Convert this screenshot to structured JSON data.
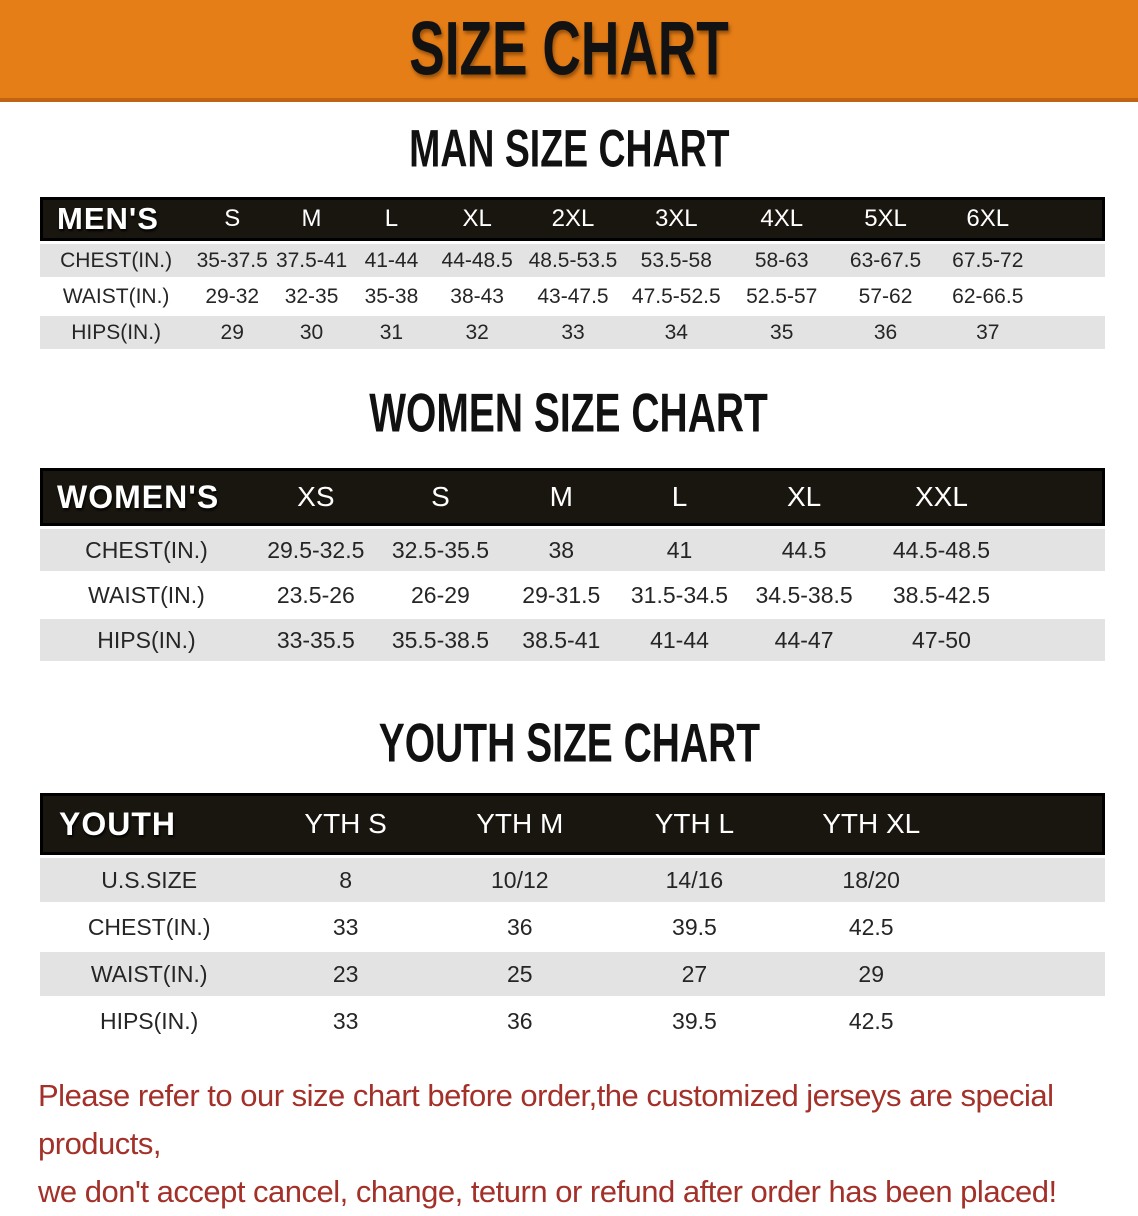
{
  "banner": {
    "title": "SIZE CHART"
  },
  "colors": {
    "banner_bg": "#E67E17",
    "banner_border": "#C06313",
    "header_bg": "#19150F",
    "header_border": "#000000",
    "row_gray": "#E3E3E3",
    "footer_red": "#A33029",
    "cell_text": "#252525",
    "heading_black": "#111111"
  },
  "sections": [
    {
      "heading": "MAN SIZE CHART",
      "table": {
        "header_label": "MEN'S",
        "columns": [
          "S",
          "M",
          "L",
          "XL",
          "2XL",
          "3XL",
          "4XL",
          "5XL",
          "6XL"
        ],
        "rows": [
          {
            "label": "CHEST(IN.)",
            "values": [
              "35-37.5",
              "37.5-41",
              "41-44",
              "44-48.5",
              "48.5-53.5",
              "53.5-58",
              "58-63",
              "63-67.5",
              "67.5-72"
            ]
          },
          {
            "label": "WAIST(IN.)",
            "values": [
              "29-32",
              "32-35",
              "35-38",
              "38-43",
              "43-47.5",
              "47.5-52.5",
              "52.5-57",
              "57-62",
              "62-66.5"
            ]
          },
          {
            "label": "HIPS(IN.)",
            "values": [
              "29",
              "30",
              "31",
              "32",
              "33",
              "34",
              "35",
              "36",
              "37"
            ]
          }
        ]
      }
    },
    {
      "heading": "WOMEN SIZE CHART",
      "table": {
        "header_label": "WOMEN'S",
        "columns": [
          "XS",
          "S",
          "M",
          "L",
          "XL",
          "XXL"
        ],
        "rows": [
          {
            "label": "CHEST(IN.)",
            "values": [
              "29.5-32.5",
              "32.5-35.5",
              "38",
              "41",
              "44.5",
              "44.5-48.5"
            ]
          },
          {
            "label": "WAIST(IN.)",
            "values": [
              "23.5-26",
              "26-29",
              "29-31.5",
              "31.5-34.5",
              "34.5-38.5",
              "38.5-42.5"
            ]
          },
          {
            "label": "HIPS(IN.)",
            "values": [
              "33-35.5",
              "35.5-38.5",
              "38.5-41",
              "41-44",
              "44-47",
              "47-50"
            ]
          }
        ]
      }
    },
    {
      "heading": "YOUTH SIZE CHART",
      "table": {
        "header_label": "YOUTH",
        "columns": [
          "YTH S",
          "YTH M",
          "YTH L",
          "YTH XL"
        ],
        "rows": [
          {
            "label": "U.S.SIZE",
            "values": [
              "8",
              "10/12",
              "14/16",
              "18/20"
            ]
          },
          {
            "label": "CHEST(IN.)",
            "values": [
              "33",
              "36",
              "39.5",
              "42.5"
            ]
          },
          {
            "label": "WAIST(IN.)",
            "values": [
              "23",
              "25",
              "27",
              "29"
            ]
          },
          {
            "label": "HIPS(IN.)",
            "values": [
              "33",
              "36",
              "39.5",
              "42.5"
            ]
          }
        ]
      }
    }
  ],
  "footer": {
    "line1": "Please refer to our size chart before order,the customized jerseys are special products,",
    "line2": "we don't accept cancel, change, teturn or refund after order has been placed!"
  }
}
